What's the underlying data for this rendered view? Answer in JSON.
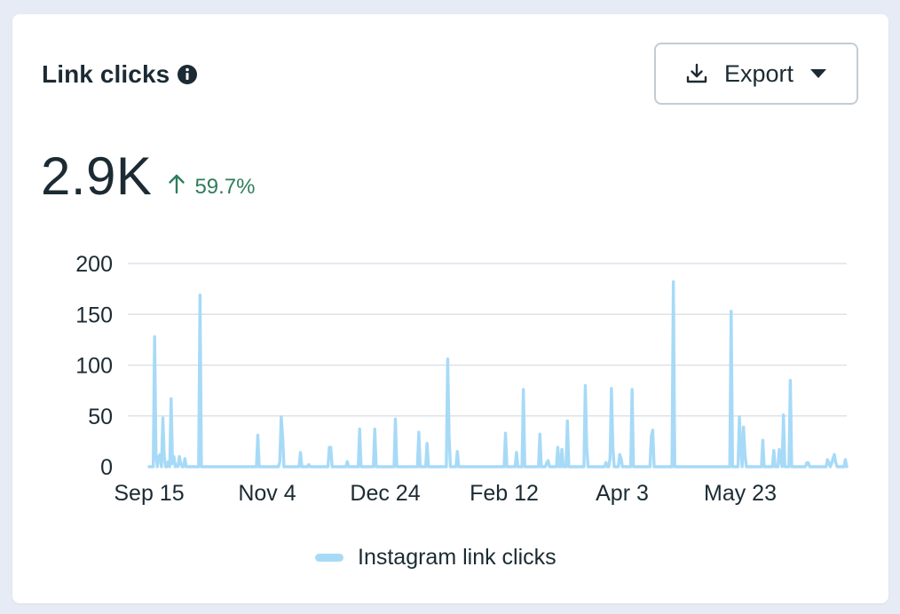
{
  "card": {
    "title": "Link clicks",
    "export_label": "Export",
    "metric_value": "2.9K",
    "metric_change": "59.7%",
    "colors": {
      "accent_up": "#2f7d5b",
      "series": "#a7daf7"
    }
  },
  "icons": [
    "info-icon",
    "download-icon",
    "caret-down-icon",
    "arrow-up-icon"
  ],
  "chart_data": {
    "type": "line",
    "series": [
      {
        "name": "Instagram link clicks",
        "values": [
          0,
          0,
          0,
          0,
          128,
          10,
          0,
          10,
          12,
          0,
          48,
          10,
          0,
          0,
          5,
          0,
          67,
          3,
          10,
          0,
          2,
          0,
          10,
          3,
          0,
          0,
          8,
          0,
          0,
          0,
          0,
          0,
          0,
          0,
          0,
          0,
          0,
          169,
          0,
          0,
          0,
          0,
          0,
          0,
          0,
          0,
          0,
          0,
          0,
          0,
          0,
          0,
          0,
          0,
          0,
          0,
          0,
          0,
          0,
          0,
          0,
          0,
          0,
          0,
          0,
          0,
          0,
          0,
          0,
          0,
          0,
          0,
          0,
          0,
          0,
          0,
          0,
          0,
          0,
          31,
          0,
          0,
          0,
          0,
          0,
          0,
          0,
          0,
          0,
          0,
          0,
          0,
          0,
          0,
          0,
          5,
          49,
          30,
          0,
          0,
          0,
          0,
          0,
          0,
          0,
          0,
          0,
          0,
          0,
          0,
          14,
          0,
          0,
          0,
          0,
          0,
          2,
          0,
          0,
          0,
          0,
          0,
          0,
          0,
          0,
          0,
          0,
          0,
          0,
          0,
          0,
          19,
          19,
          0,
          0,
          0,
          0,
          0,
          0,
          0,
          0,
          0,
          0,
          0,
          5,
          0,
          0,
          0,
          0,
          0,
          0,
          0,
          0,
          37,
          0,
          0,
          0,
          0,
          0,
          0,
          0,
          0,
          0,
          0,
          37,
          0,
          0,
          0,
          0,
          0,
          0,
          0,
          0,
          0,
          0,
          0,
          0,
          0,
          0,
          47,
          0,
          0,
          0,
          0,
          0,
          0,
          0,
          0,
          0,
          0,
          0,
          0,
          0,
          0,
          0,
          0,
          34,
          0,
          0,
          0,
          0,
          0,
          23,
          0,
          0,
          0,
          0,
          0,
          0,
          0,
          0,
          0,
          0,
          0,
          0,
          0,
          0,
          106,
          30,
          0,
          0,
          0,
          0,
          0,
          15,
          0,
          0,
          0,
          0,
          0,
          0,
          0,
          0,
          0,
          0,
          0,
          0,
          0,
          0,
          0,
          0,
          0,
          0,
          0,
          0,
          0,
          0,
          0,
          0,
          0,
          0,
          0,
          0,
          0,
          0,
          0,
          0,
          0,
          0,
          33,
          0,
          0,
          0,
          0,
          0,
          0,
          0,
          14,
          0,
          0,
          0,
          0,
          76,
          0,
          0,
          0,
          0,
          0,
          0,
          0,
          0,
          0,
          0,
          0,
          32,
          0,
          0,
          0,
          0,
          4,
          6,
          0,
          0,
          0,
          0,
          0,
          0,
          19,
          0,
          0,
          17,
          0,
          0,
          0,
          45,
          0,
          0,
          0,
          0,
          0,
          0,
          0,
          0,
          0,
          0,
          0,
          0,
          80,
          20,
          0,
          0,
          0,
          0,
          0,
          0,
          0,
          0,
          0,
          0,
          0,
          0,
          0,
          4,
          0,
          0,
          8,
          77,
          20,
          0,
          0,
          0,
          0,
          12,
          8,
          0,
          0,
          0,
          0,
          0,
          0,
          0,
          76,
          0,
          0,
          0,
          0,
          0,
          0,
          0,
          0,
          0,
          0,
          0,
          0,
          0,
          30,
          36,
          0,
          0,
          0,
          0,
          0,
          0,
          0,
          0,
          0,
          0,
          0,
          0,
          0,
          0,
          182,
          0,
          0,
          0,
          0,
          0,
          0,
          0,
          0,
          0,
          0,
          0,
          0,
          0,
          0,
          0,
          0,
          0,
          0,
          0,
          0,
          0,
          0,
          0,
          0,
          0,
          0,
          0,
          0,
          0,
          0,
          0,
          0,
          0,
          0,
          0,
          0,
          0,
          0,
          0,
          0,
          0,
          153,
          0,
          0,
          0,
          0,
          0,
          49,
          18,
          0,
          39,
          13,
          0,
          0,
          0,
          0,
          0,
          0,
          0,
          0,
          0,
          0,
          0,
          0,
          26,
          0,
          0,
          0,
          0,
          0,
          0,
          0,
          16,
          0,
          0,
          0,
          17,
          7,
          0,
          51,
          0,
          0,
          0,
          0,
          85,
          0,
          0,
          0,
          0,
          0,
          0,
          0,
          0,
          0,
          0,
          0,
          4,
          4,
          0,
          0,
          0,
          0,
          0,
          0,
          0,
          0,
          0,
          0,
          0,
          0,
          0,
          7,
          4,
          0,
          3,
          8,
          12,
          4,
          0,
          0,
          0,
          0,
          0,
          0,
          7,
          0
        ]
      }
    ],
    "x_tick_labels": [
      "Sep 15",
      "Nov 4",
      "Dec 24",
      "Feb 12",
      "Apr 3",
      "May 23"
    ],
    "y_tick_labels": [
      "0",
      "50",
      "100",
      "150",
      "200"
    ],
    "ylim": [
      0,
      200
    ],
    "grid": true,
    "legend_position": "bottom-center"
  }
}
